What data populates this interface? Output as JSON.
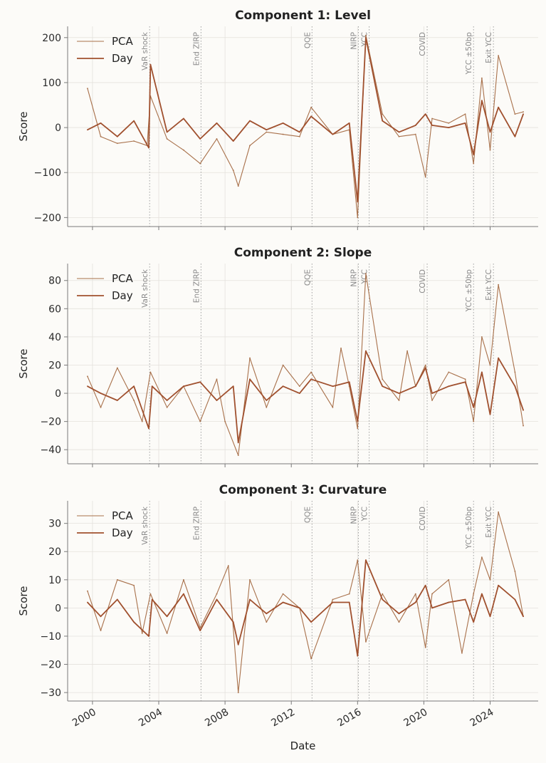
{
  "chart_data": [
    {
      "type": "line",
      "title": "Component 1: Level",
      "ylabel": "Score",
      "ylim": [
        -220,
        225
      ],
      "yticks": [
        -200,
        -100,
        0,
        100,
        200
      ],
      "ytick_labels": [
        "−200",
        "−100",
        "0",
        "100",
        "200"
      ],
      "series": [
        {
          "name": "PCA",
          "color": "#a8704a",
          "x": [
            1999.7,
            2000.5,
            2001.5,
            2002.5,
            2003.3,
            2003.5,
            2004.5,
            2005.5,
            2006.5,
            2007.5,
            2008.5,
            2008.8,
            2009.5,
            2010.5,
            2011.5,
            2012.5,
            2013.2,
            2014.5,
            2015.5,
            2016.0,
            2016.5,
            2017.5,
            2018.5,
            2019.5,
            2020.1,
            2020.5,
            2021.5,
            2022.5,
            2023.0,
            2023.5,
            2024.0,
            2024.5,
            2025.5,
            2026.0
          ],
          "values": [
            87,
            -20,
            -35,
            -30,
            -40,
            70,
            -25,
            -50,
            -80,
            -25,
            -95,
            -130,
            -40,
            -10,
            -15,
            -20,
            45,
            -15,
            -5,
            -200,
            205,
            30,
            -20,
            -15,
            -110,
            20,
            10,
            30,
            -80,
            110,
            -50,
            160,
            30,
            35
          ]
        },
        {
          "name": "Day",
          "color": "#a0502e",
          "x": [
            1999.7,
            2000.5,
            2001.5,
            2002.5,
            2003.4,
            2003.5,
            2004.5,
            2005.5,
            2006.5,
            2007.5,
            2008.5,
            2009.5,
            2010.5,
            2011.5,
            2012.5,
            2013.2,
            2014.5,
            2015.5,
            2016.0,
            2016.5,
            2017.5,
            2018.5,
            2019.5,
            2020.1,
            2020.5,
            2021.5,
            2022.5,
            2023.0,
            2023.5,
            2024.0,
            2024.5,
            2025.5,
            2026.0
          ],
          "values": [
            -5,
            10,
            -20,
            15,
            -45,
            140,
            -10,
            20,
            -25,
            10,
            -30,
            15,
            -5,
            10,
            -10,
            25,
            -15,
            10,
            -165,
            200,
            15,
            -10,
            5,
            30,
            5,
            0,
            10,
            -60,
            60,
            -10,
            45,
            -20,
            30
          ]
        }
      ],
      "legend": "top-left",
      "grid": true
    },
    {
      "type": "line",
      "title": "Component 2: Slope",
      "ylabel": "Score",
      "ylim": [
        -50,
        92
      ],
      "yticks": [
        -40,
        -20,
        0,
        20,
        40,
        60,
        80
      ],
      "ytick_labels": [
        "−40",
        "−20",
        "0",
        "20",
        "40",
        "60",
        "80"
      ],
      "series": [
        {
          "name": "PCA",
          "color": "#a8704a",
          "x": [
            1999.7,
            2000.5,
            2001.5,
            2002.5,
            2003.0,
            2003.5,
            2004.5,
            2005.5,
            2006.5,
            2007.5,
            2008.0,
            2008.8,
            2009.5,
            2010.5,
            2011.5,
            2012.5,
            2013.2,
            2014.5,
            2015.0,
            2015.5,
            2016.0,
            2016.5,
            2017.5,
            2018.5,
            2019.0,
            2019.5,
            2020.1,
            2020.5,
            2021.5,
            2022.5,
            2023.0,
            2023.5,
            2024.0,
            2024.5,
            2025.5,
            2026.0
          ],
          "values": [
            12,
            -10,
            18,
            -5,
            -20,
            15,
            -10,
            5,
            -20,
            10,
            -20,
            -44,
            25,
            -10,
            20,
            5,
            15,
            -10,
            32,
            5,
            -25,
            85,
            10,
            -5,
            30,
            5,
            20,
            -5,
            15,
            10,
            -20,
            40,
            20,
            77,
            15,
            -23
          ]
        },
        {
          "name": "Day",
          "color": "#a0502e",
          "x": [
            1999.7,
            2000.5,
            2001.5,
            2002.5,
            2003.4,
            2003.6,
            2004.5,
            2005.5,
            2006.5,
            2007.5,
            2008.5,
            2008.8,
            2009.5,
            2010.5,
            2011.5,
            2012.5,
            2013.2,
            2014.5,
            2015.5,
            2016.0,
            2016.5,
            2017.5,
            2018.5,
            2019.5,
            2020.1,
            2020.5,
            2021.5,
            2022.5,
            2023.0,
            2023.5,
            2024.0,
            2024.5,
            2025.5,
            2026.0
          ],
          "values": [
            5,
            0,
            -5,
            5,
            -25,
            5,
            -5,
            5,
            8,
            -5,
            5,
            -35,
            10,
            -5,
            5,
            0,
            10,
            5,
            8,
            -20,
            30,
            5,
            0,
            5,
            18,
            0,
            5,
            8,
            -10,
            15,
            -15,
            25,
            5,
            -12
          ]
        }
      ],
      "legend": "top-left",
      "grid": true
    },
    {
      "type": "line",
      "title": "Component 3: Curvature",
      "ylabel": "Score",
      "ylim": [
        -33,
        38
      ],
      "yticks": [
        -30,
        -20,
        -10,
        0,
        10,
        20,
        30
      ],
      "ytick_labels": [
        "−30",
        "−20",
        "−10",
        "0",
        "10",
        "20",
        "30"
      ],
      "series": [
        {
          "name": "PCA",
          "color": "#a8704a",
          "x": [
            1999.7,
            2000.5,
            2001.5,
            2002.5,
            2003.0,
            2003.5,
            2004.5,
            2005.5,
            2006.5,
            2007.5,
            2008.2,
            2008.8,
            2009.5,
            2010.5,
            2011.5,
            2012.5,
            2013.2,
            2014.5,
            2015.5,
            2016.0,
            2016.5,
            2017.5,
            2018.5,
            2019.5,
            2020.1,
            2020.5,
            2021.5,
            2022.3,
            2023.0,
            2023.5,
            2024.0,
            2024.5,
            2025.5,
            2026.0
          ],
          "values": [
            6,
            -8,
            10,
            8,
            -9,
            5,
            -9,
            10,
            -7,
            5,
            15,
            -30,
            10,
            -5,
            5,
            0,
            -18,
            3,
            5,
            17,
            -12,
            5,
            -5,
            5,
            -14,
            5,
            10,
            -16,
            5,
            18,
            10,
            34,
            13,
            -3
          ]
        },
        {
          "name": "Day",
          "color": "#a0502e",
          "x": [
            1999.7,
            2000.5,
            2001.5,
            2002.5,
            2003.4,
            2003.6,
            2004.5,
            2005.5,
            2006.5,
            2007.5,
            2008.5,
            2008.8,
            2009.5,
            2010.5,
            2011.5,
            2012.5,
            2013.2,
            2014.5,
            2015.5,
            2016.0,
            2016.5,
            2017.5,
            2018.5,
            2019.5,
            2020.1,
            2020.5,
            2021.5,
            2022.5,
            2023.0,
            2023.5,
            2024.0,
            2024.5,
            2025.5,
            2026.0
          ],
          "values": [
            2,
            -3,
            3,
            -5,
            -10,
            3,
            -3,
            5,
            -8,
            3,
            -5,
            -13,
            3,
            -2,
            2,
            0,
            -5,
            2,
            2,
            -17,
            17,
            3,
            -2,
            2,
            8,
            0,
            2,
            3,
            -5,
            5,
            -3,
            8,
            3,
            -3
          ]
        }
      ],
      "legend": "top-left",
      "grid": true
    }
  ],
  "shared_x": {
    "xlabel": "Date",
    "xlim": [
      1998.5,
      2026.9
    ],
    "xticks": [
      2000,
      2004,
      2008,
      2012,
      2016,
      2020,
      2024
    ],
    "xtick_labels": [
      "2000",
      "2004",
      "2008",
      "2012",
      "2016",
      "2020",
      "2024"
    ]
  },
  "events": [
    {
      "label": "VaR shock",
      "x": 2003.45
    },
    {
      "label": "End ZIRP",
      "x": 2006.55
    },
    {
      "label": "QQE",
      "x": 2013.25
    },
    {
      "label": "NIRP",
      "x": 2016.05
    },
    {
      "label": "YCC",
      "x": 2016.7
    },
    {
      "label": "COVID",
      "x": 2020.2
    },
    {
      "label": "YCC ±50bp",
      "x": 2023.0
    },
    {
      "label": "Exit YCC",
      "x": 2024.2
    }
  ],
  "colors": {
    "background": "#fcfbf8",
    "grid": "#e4e1dc",
    "axis": "#7a7a7a",
    "event_line": "#a0a0a0",
    "event_text": "#8a8a8a"
  }
}
